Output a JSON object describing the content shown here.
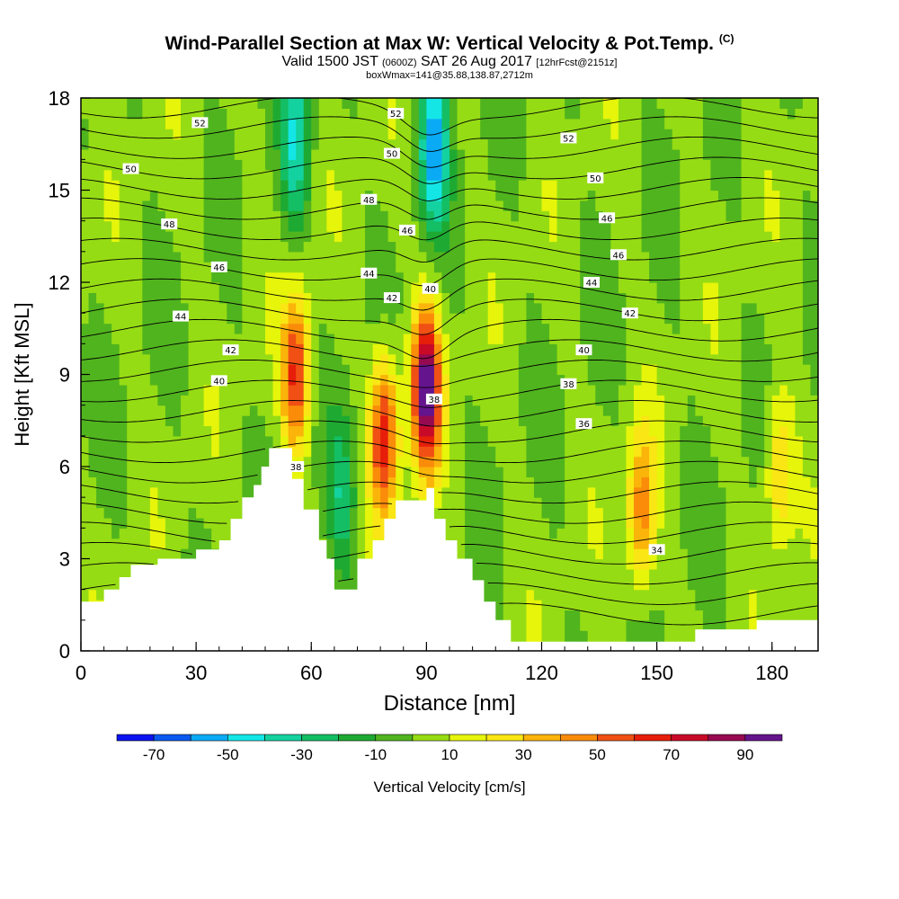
{
  "title": {
    "main": "Wind-Parallel Section at Max W: Vertical Velocity & Pot.Temp.",
    "copyright": "(C)",
    "valid_prefix": "Valid 1500 JST",
    "valid_utc": "(0600Z)",
    "valid_date": "SAT 26 Aug 2017",
    "forecast": "[12hrFcst@2151z]",
    "box": "boxWmax=141@35.88,138.87,2712m"
  },
  "chart_data": {
    "type": "heatmap",
    "xlabel": "Distance [nm]",
    "ylabel": "Height [Kft MSL]",
    "xlim": [
      0,
      192
    ],
    "ylim": [
      0,
      18
    ],
    "x_ticks": [
      0,
      30,
      60,
      90,
      120,
      150,
      180
    ],
    "y_ticks": [
      0,
      3,
      6,
      9,
      12,
      15,
      18
    ],
    "colorbar": {
      "label": "Vertical Velocity [cm/s]",
      "levels": [
        -80,
        -70,
        -60,
        -50,
        -40,
        -30,
        -20,
        -10,
        0,
        10,
        20,
        30,
        40,
        50,
        60,
        70,
        80,
        90,
        100
      ],
      "tick_labels": [
        "-70",
        "-50",
        "-30",
        "-10",
        "10",
        "30",
        "50",
        "70",
        "90"
      ],
      "colors": [
        "#0a14f0",
        "#0a5af0",
        "#0aaaf5",
        "#14e6e6",
        "#14d2a0",
        "#14be64",
        "#1eaa32",
        "#50b41e",
        "#96dc14",
        "#e6f50a",
        "#fae614",
        "#fab40a",
        "#fa8c0a",
        "#f05014",
        "#e61e0a",
        "#c80a28",
        "#960a50",
        "#64148c"
      ]
    },
    "vertical_velocity_features": [
      {
        "x": 90,
        "height": 8.5,
        "value": 95
      },
      {
        "x": 79,
        "height": 7.0,
        "value": 65
      },
      {
        "x": 56,
        "height": 9.0,
        "value": 60
      },
      {
        "x": 146,
        "height": 4.5,
        "value": 45
      },
      {
        "x": 182,
        "height": 6.0,
        "value": 30
      },
      {
        "x": 56,
        "height": 16.5,
        "value": -40
      },
      {
        "x": 92,
        "height": 16.5,
        "value": -60
      },
      {
        "x": 68,
        "height": 5.0,
        "value": -30
      }
    ],
    "terrain": [
      [
        0,
        1.6
      ],
      [
        6,
        1.6
      ],
      [
        6,
        2.0
      ],
      [
        10,
        2.0
      ],
      [
        10,
        2.4
      ],
      [
        13,
        2.4
      ],
      [
        13,
        2.8
      ],
      [
        20,
        2.8
      ],
      [
        20,
        3.0
      ],
      [
        30,
        3.0
      ],
      [
        30,
        3.3
      ],
      [
        36,
        3.3
      ],
      [
        36,
        3.6
      ],
      [
        39,
        3.6
      ],
      [
        39,
        4.3
      ],
      [
        42,
        4.3
      ],
      [
        42,
        5.0
      ],
      [
        45,
        5.0
      ],
      [
        45,
        5.4
      ],
      [
        47,
        5.4
      ],
      [
        47,
        6.0
      ],
      [
        49,
        6.0
      ],
      [
        49,
        6.6
      ],
      [
        55,
        6.6
      ],
      [
        55,
        5.6
      ],
      [
        58,
        5.6
      ],
      [
        58,
        4.6
      ],
      [
        62,
        4.6
      ],
      [
        62,
        3.6
      ],
      [
        64,
        3.6
      ],
      [
        64,
        3.0
      ],
      [
        66,
        3.0
      ],
      [
        66,
        2.0
      ],
      [
        72,
        2.0
      ],
      [
        72,
        3.0
      ],
      [
        76,
        3.0
      ],
      [
        76,
        3.6
      ],
      [
        79,
        3.6
      ],
      [
        79,
        4.3
      ],
      [
        82,
        4.3
      ],
      [
        82,
        4.9
      ],
      [
        90,
        4.9
      ],
      [
        90,
        5.3
      ],
      [
        92,
        5.3
      ],
      [
        92,
        4.3
      ],
      [
        95,
        4.3
      ],
      [
        95,
        3.6
      ],
      [
        98,
        3.6
      ],
      [
        98,
        3.0
      ],
      [
        102,
        3.0
      ],
      [
        102,
        2.3
      ],
      [
        105,
        2.3
      ],
      [
        105,
        1.6
      ],
      [
        108,
        1.6
      ],
      [
        108,
        1.0
      ],
      [
        112,
        1.0
      ],
      [
        112,
        0.3
      ],
      [
        160,
        0.3
      ],
      [
        160,
        0.7
      ],
      [
        176,
        0.7
      ],
      [
        176,
        1.0
      ],
      [
        192,
        1.0
      ],
      [
        192,
        0
      ],
      [
        0,
        0
      ]
    ],
    "isentrope_labels": [
      {
        "text": "52",
        "x": 31,
        "height": 17.2
      },
      {
        "text": "50",
        "x": 13,
        "height": 15.7
      },
      {
        "text": "48",
        "x": 23,
        "height": 13.9
      },
      {
        "text": "46",
        "x": 36,
        "height": 12.5
      },
      {
        "text": "44",
        "x": 26,
        "height": 10.9
      },
      {
        "text": "42",
        "x": 39,
        "height": 9.8
      },
      {
        "text": "40",
        "x": 36,
        "height": 8.8
      },
      {
        "text": "38",
        "x": 56,
        "height": 6.0
      },
      {
        "text": "52",
        "x": 82,
        "height": 17.5
      },
      {
        "text": "50",
        "x": 81,
        "height": 16.2
      },
      {
        "text": "48",
        "x": 75,
        "height": 14.7
      },
      {
        "text": "46",
        "x": 85,
        "height": 13.7
      },
      {
        "text": "44",
        "x": 75,
        "height": 12.3
      },
      {
        "text": "42",
        "x": 81,
        "height": 11.5
      },
      {
        "text": "40",
        "x": 91,
        "height": 11.8
      },
      {
        "text": "38",
        "x": 92,
        "height": 8.2
      },
      {
        "text": "52",
        "x": 127,
        "height": 16.7
      },
      {
        "text": "50",
        "x": 134,
        "height": 15.4
      },
      {
        "text": "46",
        "x": 137,
        "height": 14.1
      },
      {
        "text": "46",
        "x": 140,
        "height": 12.9
      },
      {
        "text": "44",
        "x": 133,
        "height": 12.0
      },
      {
        "text": "42",
        "x": 143,
        "height": 11.0
      },
      {
        "text": "40",
        "x": 131,
        "height": 9.8
      },
      {
        "text": "38",
        "x": 127,
        "height": 8.7
      },
      {
        "text": "36",
        "x": 131,
        "height": 7.4
      },
      {
        "text": "34",
        "x": 150,
        "height": 3.3
      }
    ]
  }
}
